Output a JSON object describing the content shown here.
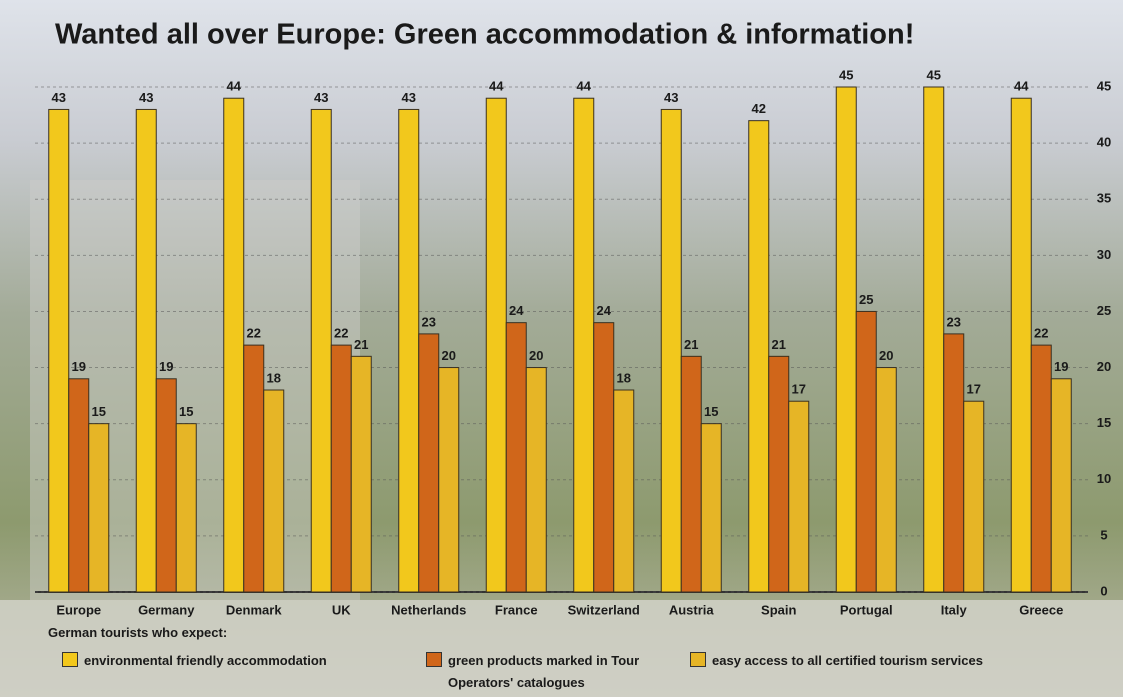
{
  "chart_data": {
    "type": "bar",
    "title": "Wanted all over Europe: Green accommodation & information!",
    "categories": [
      "Europe",
      "Germany",
      "Denmark",
      "UK",
      "Netherlands",
      "France",
      "Switzerland",
      "Austria",
      "Spain",
      "Portugal",
      "Italy",
      "Greece"
    ],
    "series": [
      {
        "name": "environmental friendly accommodation",
        "color": "#f2c81c",
        "values": [
          43,
          43,
          44,
          43,
          43,
          44,
          44,
          43,
          42,
          45,
          45,
          44
        ]
      },
      {
        "name": "green products marked in Tour Operators' catalogues",
        "color": "#d0661a",
        "values": [
          19,
          19,
          22,
          22,
          23,
          24,
          24,
          21,
          21,
          25,
          23,
          22
        ]
      },
      {
        "name": "easy access to all certified tourism services",
        "color": "#e6b526",
        "values": [
          15,
          15,
          18,
          21,
          20,
          20,
          18,
          15,
          17,
          20,
          17,
          19
        ]
      }
    ],
    "legend_title": "German tourists who expect:",
    "ylim": [
      0,
      45
    ],
    "yticks": [
      0,
      5,
      10,
      15,
      20,
      25,
      30,
      35,
      40,
      45
    ],
    "grid": true
  }
}
